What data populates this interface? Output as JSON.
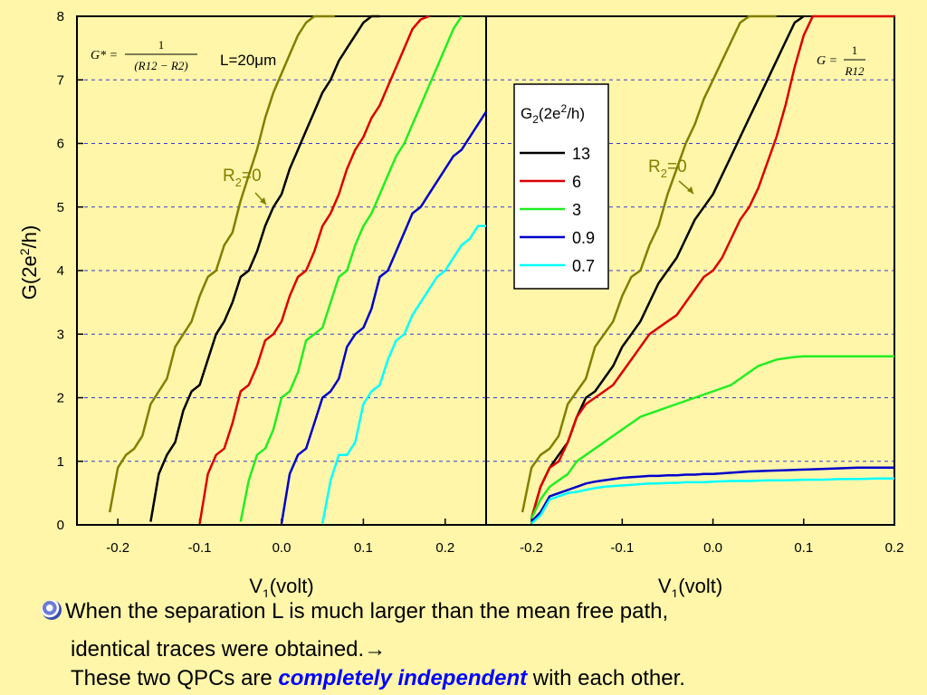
{
  "chart_data": [
    {
      "type": "line",
      "panel": "left",
      "xlabel": "V",
      "xlabel_sub": "1",
      "xlabel_unit": "(volt)",
      "ylabel": "G(2e",
      "ylabel_sup": "2",
      "ylabel_tail": "/h)",
      "xlim": [
        -0.25,
        0.25
      ],
      "ylim": [
        0,
        8
      ],
      "xticks": [
        -0.2,
        -0.1,
        0.0,
        0.1,
        0.2
      ],
      "xtick_labels": [
        "-0.2",
        "-0.1",
        "0.0",
        "0.1",
        "0.2"
      ],
      "yticks": [
        0,
        1,
        2,
        3,
        4,
        5,
        6,
        7,
        8
      ],
      "ytick_labels": [
        "0",
        "1",
        "2",
        "3",
        "4",
        "5",
        "6",
        "7",
        "8"
      ],
      "grid": "horizontal dashed",
      "formula": {
        "lhs": "G* =",
        "num": "1",
        "den": "(R12 − R2)"
      },
      "annotation_length": "L=20μm",
      "annotation_r2": {
        "text": "R",
        "sub": "2",
        "tail": "=0"
      },
      "series": [
        {
          "g2": "R2=0",
          "color": "#808000",
          "x": [
            -0.21,
            -0.2,
            -0.19,
            -0.18,
            -0.17,
            -0.16,
            -0.15,
            -0.14,
            -0.13,
            -0.12,
            -0.11,
            -0.1,
            -0.09,
            -0.08,
            -0.07,
            -0.06,
            -0.05,
            -0.04,
            -0.03,
            -0.02,
            -0.01,
            0.0,
            0.01,
            0.02,
            0.03,
            0.04,
            0.05,
            0.06,
            0.065
          ],
          "y": [
            0.2,
            0.9,
            1.1,
            1.2,
            1.4,
            1.9,
            2.1,
            2.3,
            2.8,
            3.0,
            3.2,
            3.6,
            3.9,
            4.0,
            4.4,
            4.6,
            5.1,
            5.5,
            5.9,
            6.4,
            6.8,
            7.1,
            7.4,
            7.7,
            7.9,
            8.0,
            8.0,
            8.0,
            8.0
          ]
        },
        {
          "g2": "13",
          "color": "#000000",
          "x": [
            -0.16,
            -0.15,
            -0.14,
            -0.13,
            -0.12,
            -0.11,
            -0.1,
            -0.09,
            -0.08,
            -0.07,
            -0.06,
            -0.05,
            -0.04,
            -0.03,
            -0.02,
            -0.01,
            0.0,
            0.01,
            0.02,
            0.03,
            0.04,
            0.05,
            0.06,
            0.07,
            0.08,
            0.09,
            0.1,
            0.11,
            0.12
          ],
          "y": [
            0.05,
            0.8,
            1.1,
            1.3,
            1.8,
            2.1,
            2.2,
            2.6,
            3.0,
            3.2,
            3.5,
            3.9,
            4.0,
            4.3,
            4.7,
            5.0,
            5.2,
            5.6,
            5.9,
            6.2,
            6.5,
            6.8,
            7.0,
            7.3,
            7.5,
            7.7,
            7.9,
            8.0,
            8.0
          ]
        },
        {
          "g2": "6",
          "color": "#dd0000",
          "x": [
            -0.1,
            -0.09,
            -0.08,
            -0.07,
            -0.06,
            -0.05,
            -0.04,
            -0.03,
            -0.02,
            -0.01,
            0.0,
            0.01,
            0.02,
            0.03,
            0.04,
            0.05,
            0.06,
            0.07,
            0.08,
            0.09,
            0.1,
            0.11,
            0.12,
            0.13,
            0.14,
            0.15,
            0.16,
            0.17,
            0.18
          ],
          "y": [
            0.02,
            0.8,
            1.1,
            1.2,
            1.6,
            2.1,
            2.2,
            2.5,
            2.9,
            3.0,
            3.2,
            3.6,
            3.9,
            4.0,
            4.3,
            4.7,
            4.9,
            5.2,
            5.6,
            5.9,
            6.1,
            6.4,
            6.6,
            6.9,
            7.2,
            7.5,
            7.8,
            7.95,
            8.0
          ]
        },
        {
          "g2": "3",
          "color": "#22ee22",
          "x": [
            -0.05,
            -0.04,
            -0.03,
            -0.02,
            -0.01,
            0.0,
            0.01,
            0.02,
            0.03,
            0.04,
            0.05,
            0.06,
            0.07,
            0.08,
            0.09,
            0.1,
            0.11,
            0.12,
            0.13,
            0.14,
            0.15,
            0.16,
            0.17,
            0.18,
            0.19,
            0.2,
            0.21,
            0.22
          ],
          "y": [
            0.05,
            0.7,
            1.1,
            1.2,
            1.5,
            2.0,
            2.1,
            2.4,
            2.9,
            3.0,
            3.1,
            3.5,
            3.9,
            4.0,
            4.4,
            4.7,
            4.9,
            5.2,
            5.5,
            5.8,
            6.0,
            6.3,
            6.6,
            6.9,
            7.2,
            7.5,
            7.8,
            8.0
          ]
        },
        {
          "g2": "0.9",
          "color": "#0000cc",
          "x": [
            0.0,
            0.01,
            0.02,
            0.03,
            0.04,
            0.05,
            0.06,
            0.07,
            0.08,
            0.09,
            0.1,
            0.11,
            0.12,
            0.13,
            0.14,
            0.15,
            0.16,
            0.17,
            0.18,
            0.19,
            0.2,
            0.21,
            0.22,
            0.23,
            0.24,
            0.25
          ],
          "y": [
            0.02,
            0.8,
            1.1,
            1.2,
            1.6,
            2.0,
            2.1,
            2.3,
            2.8,
            3.0,
            3.1,
            3.4,
            3.9,
            4.0,
            4.3,
            4.6,
            4.9,
            5.0,
            5.2,
            5.4,
            5.6,
            5.8,
            5.9,
            6.1,
            6.3,
            6.5
          ]
        },
        {
          "g2": "0.7",
          "color": "#00ffff",
          "x": [
            0.05,
            0.06,
            0.07,
            0.08,
            0.09,
            0.1,
            0.11,
            0.12,
            0.13,
            0.14,
            0.15,
            0.16,
            0.17,
            0.18,
            0.19,
            0.2,
            0.21,
            0.22,
            0.23,
            0.24,
            0.25
          ],
          "y": [
            0.02,
            0.7,
            1.1,
            1.1,
            1.3,
            1.9,
            2.1,
            2.2,
            2.6,
            2.9,
            3.0,
            3.3,
            3.5,
            3.7,
            3.9,
            4.0,
            4.2,
            4.4,
            4.5,
            4.7,
            4.7
          ]
        }
      ]
    },
    {
      "type": "line",
      "panel": "right",
      "xlabel": "V",
      "xlabel_sub": "1",
      "xlabel_unit": "(volt)",
      "xlim": [
        -0.25,
        0.2
      ],
      "ylim": [
        0,
        8
      ],
      "xticks": [
        -0.2,
        -0.1,
        0.0,
        0.1,
        0.2
      ],
      "xtick_labels": [
        "-0.2",
        "-0.1",
        "0.0",
        "0.1",
        "0.2"
      ],
      "grid": "horizontal dashed",
      "formula": {
        "lhs": "G =",
        "num": "1",
        "den": "R12"
      },
      "annotation_r2": {
        "text": "R",
        "sub": "2",
        "tail": "=0"
      },
      "legend": {
        "title": "G",
        "title_sub": "2",
        "title_tail": "(2e",
        "title_sup": "2",
        "title_end": "/h)",
        "placement": "top-center",
        "entries": [
          {
            "label": "13",
            "color": "#000000"
          },
          {
            "label": "6",
            "color": "#dd0000"
          },
          {
            "label": "3",
            "color": "#22ee22"
          },
          {
            "label": "0.9",
            "color": "#0000cc"
          },
          {
            "label": "0.7",
            "color": "#00ffff"
          }
        ]
      },
      "series": [
        {
          "g2": "R2=0",
          "color": "#808000",
          "x": [
            -0.21,
            -0.2,
            -0.19,
            -0.18,
            -0.17,
            -0.16,
            -0.15,
            -0.14,
            -0.13,
            -0.12,
            -0.11,
            -0.1,
            -0.09,
            -0.08,
            -0.07,
            -0.06,
            -0.05,
            -0.04,
            -0.03,
            -0.02,
            -0.01,
            0.0,
            0.01,
            0.02,
            0.03,
            0.04,
            0.05,
            0.06,
            0.07
          ],
          "y": [
            0.2,
            0.9,
            1.1,
            1.2,
            1.4,
            1.9,
            2.1,
            2.3,
            2.8,
            3.0,
            3.2,
            3.6,
            3.9,
            4.0,
            4.4,
            4.7,
            5.2,
            5.6,
            6.0,
            6.3,
            6.7,
            7.0,
            7.3,
            7.6,
            7.9,
            8.0,
            8.0,
            8.0,
            8.0
          ]
        },
        {
          "g2": "13",
          "color": "#000000",
          "x": [
            -0.2,
            -0.19,
            -0.18,
            -0.17,
            -0.16,
            -0.15,
            -0.14,
            -0.13,
            -0.12,
            -0.11,
            -0.1,
            -0.09,
            -0.08,
            -0.07,
            -0.06,
            -0.05,
            -0.04,
            -0.03,
            -0.02,
            -0.01,
            0.0,
            0.01,
            0.02,
            0.03,
            0.04,
            0.05,
            0.06,
            0.07,
            0.08,
            0.09,
            0.1
          ],
          "y": [
            0.1,
            0.6,
            0.9,
            1.1,
            1.3,
            1.7,
            2.0,
            2.1,
            2.3,
            2.5,
            2.8,
            3.0,
            3.2,
            3.5,
            3.8,
            4.0,
            4.2,
            4.5,
            4.8,
            5.0,
            5.2,
            5.5,
            5.8,
            6.1,
            6.4,
            6.7,
            7.0,
            7.3,
            7.6,
            7.9,
            8.0
          ]
        },
        {
          "g2": "6",
          "color": "#dd0000",
          "x": [
            -0.2,
            -0.19,
            -0.18,
            -0.17,
            -0.16,
            -0.15,
            -0.14,
            -0.13,
            -0.12,
            -0.11,
            -0.1,
            -0.09,
            -0.08,
            -0.07,
            -0.06,
            -0.05,
            -0.04,
            -0.03,
            -0.02,
            -0.01,
            0.0,
            0.01,
            0.02,
            0.03,
            0.04,
            0.05,
            0.06,
            0.07,
            0.08,
            0.09,
            0.1,
            0.11,
            0.12,
            0.13,
            0.14,
            0.15,
            0.16,
            0.17,
            0.18,
            0.19,
            0.2
          ],
          "y": [
            0.1,
            0.6,
            0.9,
            1.0,
            1.3,
            1.7,
            1.9,
            2.0,
            2.1,
            2.2,
            2.4,
            2.6,
            2.8,
            3.0,
            3.1,
            3.2,
            3.3,
            3.5,
            3.7,
            3.9,
            4.0,
            4.2,
            4.5,
            4.8,
            5.0,
            5.3,
            5.7,
            6.1,
            6.6,
            7.2,
            7.7,
            8.0,
            8.0,
            8.0,
            8.0,
            8.0,
            8.0,
            8.0,
            8.0,
            8.0,
            8.0
          ]
        },
        {
          "g2": "3",
          "color": "#22ee22",
          "x": [
            -0.2,
            -0.19,
            -0.18,
            -0.17,
            -0.16,
            -0.15,
            -0.14,
            -0.13,
            -0.12,
            -0.11,
            -0.1,
            -0.09,
            -0.08,
            -0.07,
            -0.06,
            -0.05,
            -0.04,
            -0.03,
            -0.02,
            -0.01,
            0.0,
            0.01,
            0.02,
            0.03,
            0.04,
            0.05,
            0.06,
            0.07,
            0.08,
            0.09,
            0.1,
            0.11,
            0.12,
            0.13,
            0.14,
            0.15,
            0.16,
            0.17,
            0.18,
            0.19,
            0.2
          ],
          "y": [
            0.1,
            0.4,
            0.6,
            0.7,
            0.8,
            1.0,
            1.1,
            1.2,
            1.3,
            1.4,
            1.5,
            1.6,
            1.7,
            1.75,
            1.8,
            1.85,
            1.9,
            1.95,
            2.0,
            2.05,
            2.1,
            2.15,
            2.2,
            2.3,
            2.4,
            2.5,
            2.55,
            2.6,
            2.62,
            2.64,
            2.65,
            2.65,
            2.65,
            2.65,
            2.65,
            2.65,
            2.65,
            2.65,
            2.65,
            2.65,
            2.65
          ]
        },
        {
          "g2": "0.9",
          "color": "#0000cc",
          "x": [
            -0.2,
            -0.19,
            -0.18,
            -0.17,
            -0.16,
            -0.15,
            -0.14,
            -0.13,
            -0.12,
            -0.11,
            -0.1,
            -0.09,
            -0.08,
            -0.07,
            -0.06,
            -0.05,
            -0.04,
            -0.03,
            -0.02,
            -0.01,
            0.0,
            0.02,
            0.04,
            0.06,
            0.08,
            0.1,
            0.12,
            0.14,
            0.16,
            0.18,
            0.2
          ],
          "y": [
            0.05,
            0.2,
            0.45,
            0.5,
            0.55,
            0.6,
            0.65,
            0.68,
            0.7,
            0.72,
            0.74,
            0.75,
            0.76,
            0.77,
            0.77,
            0.78,
            0.78,
            0.79,
            0.79,
            0.8,
            0.8,
            0.82,
            0.84,
            0.85,
            0.86,
            0.87,
            0.88,
            0.89,
            0.9,
            0.9,
            0.9
          ]
        },
        {
          "g2": "0.7",
          "color": "#00ffff",
          "x": [
            -0.2,
            -0.19,
            -0.18,
            -0.17,
            -0.16,
            -0.15,
            -0.14,
            -0.13,
            -0.12,
            -0.11,
            -0.1,
            -0.09,
            -0.08,
            -0.07,
            -0.06,
            -0.05,
            -0.04,
            -0.03,
            -0.02,
            -0.01,
            0.0,
            0.02,
            0.04,
            0.06,
            0.08,
            0.1,
            0.12,
            0.14,
            0.16,
            0.18,
            0.2
          ],
          "y": [
            0.02,
            0.15,
            0.4,
            0.45,
            0.5,
            0.52,
            0.55,
            0.58,
            0.6,
            0.61,
            0.62,
            0.63,
            0.64,
            0.65,
            0.65,
            0.66,
            0.66,
            0.67,
            0.67,
            0.67,
            0.68,
            0.69,
            0.69,
            0.7,
            0.7,
            0.71,
            0.71,
            0.72,
            0.72,
            0.73,
            0.73
          ]
        }
      ]
    }
  ],
  "caption": {
    "bullet_icon": "spiral-bullet-icon",
    "line1": "When the separation L is much larger than the mean free path,",
    "line2": "identical traces were obtained.→",
    "line3_prefix": "These two QPCs are ",
    "line3_emph": "completely independent",
    "line3_suffix": " with each other."
  }
}
